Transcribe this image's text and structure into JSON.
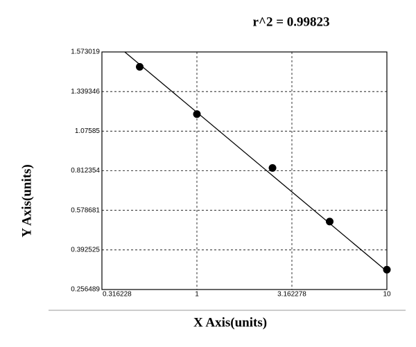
{
  "chart_data": {
    "type": "scatter",
    "annotation": "r^2  =  0.99823",
    "x_label": "X Axis(units)",
    "y_label": "Y Axis(units)",
    "x": [
      0.5,
      1,
      2.5,
      5,
      10
    ],
    "values": [
      1.485,
      1.189,
      0.831,
      0.526,
      0.3245
    ],
    "color": "#000000",
    "fit_line": {
      "x": [
        0.417,
        10
      ],
      "y": [
        1.573019,
        0.319
      ]
    },
    "xlim": [
      0.316228,
      10
    ],
    "xticks": [
      0.316228,
      1,
      3.162278,
      10
    ],
    "xscale": "log",
    "ylim": [
      0.256489,
      1.573019
    ],
    "yticks": [
      0.256489,
      0.392525,
      0.578681,
      0.812354,
      1.07585,
      1.339346,
      1.573019
    ],
    "grid": true
  }
}
